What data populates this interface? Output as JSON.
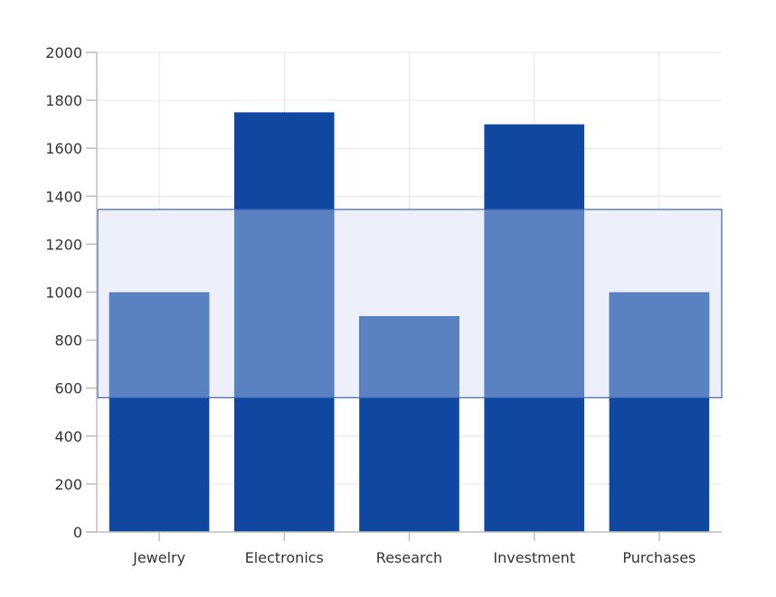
{
  "chart_data": {
    "type": "bar",
    "categories": [
      "Jewelry",
      "Electronics",
      "Research",
      "Investment",
      "Purchases"
    ],
    "values": [
      1000,
      1750,
      900,
      1700,
      1000
    ],
    "title": "",
    "xlabel": "",
    "ylabel": "",
    "ylim": [
      0,
      2000
    ],
    "yticks": [
      0,
      200,
      400,
      600,
      800,
      1000,
      1200,
      1400,
      1600,
      1800,
      2000
    ],
    "grid": true,
    "legend": "none",
    "selection_range": {
      "y_min": 560,
      "y_max": 1345
    },
    "colors": {
      "bar": "#0f47a1",
      "bar_in_selection": "#5a82c2",
      "selection_fill": "#edf0fa",
      "selection_stroke": "#3c64b4"
    }
  }
}
